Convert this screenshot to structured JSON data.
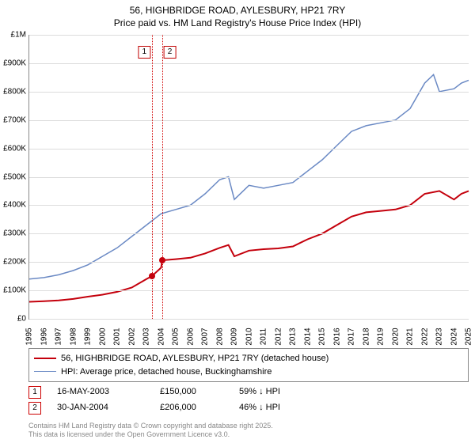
{
  "title_line1": "56, HIGHBRIDGE ROAD, AYLESBURY, HP21 7RY",
  "title_line2": "Price paid vs. HM Land Registry's House Price Index (HPI)",
  "chart": {
    "type": "line",
    "background_color": "#ffffff",
    "grid_color": "#dcdcdc",
    "axis_color": "#888888",
    "x_min": 1995,
    "x_max": 2025,
    "y_min": 0,
    "y_max": 1000000,
    "y_ticks": [
      {
        "v": 0,
        "label": "£0"
      },
      {
        "v": 100000,
        "label": "£100K"
      },
      {
        "v": 200000,
        "label": "£200K"
      },
      {
        "v": 300000,
        "label": "£300K"
      },
      {
        "v": 400000,
        "label": "£400K"
      },
      {
        "v": 500000,
        "label": "£500K"
      },
      {
        "v": 600000,
        "label": "£600K"
      },
      {
        "v": 700000,
        "label": "£700K"
      },
      {
        "v": 800000,
        "label": "£800K"
      },
      {
        "v": 900000,
        "label": "£900K"
      },
      {
        "v": 1000000,
        "label": "£1M"
      }
    ],
    "x_ticks": [
      1995,
      1996,
      1997,
      1998,
      1999,
      2000,
      2001,
      2002,
      2003,
      2004,
      2005,
      2006,
      2007,
      2008,
      2009,
      2010,
      2011,
      2012,
      2013,
      2014,
      2015,
      2016,
      2017,
      2018,
      2019,
      2020,
      2021,
      2022,
      2023,
      2024,
      2025
    ],
    "series": [
      {
        "name": "price_paid",
        "color": "#c4000c",
        "width": 2,
        "points": [
          [
            1995,
            60000
          ],
          [
            1996,
            62000
          ],
          [
            1997,
            65000
          ],
          [
            1998,
            70000
          ],
          [
            1999,
            78000
          ],
          [
            2000,
            85000
          ],
          [
            2001,
            95000
          ],
          [
            2002,
            110000
          ],
          [
            2003,
            140000
          ],
          [
            2003.37,
            150000
          ],
          [
            2004,
            180000
          ],
          [
            2004.08,
            206000
          ],
          [
            2005,
            210000
          ],
          [
            2006,
            215000
          ],
          [
            2007,
            230000
          ],
          [
            2008,
            250000
          ],
          [
            2008.6,
            260000
          ],
          [
            2009,
            220000
          ],
          [
            2010,
            240000
          ],
          [
            2011,
            245000
          ],
          [
            2012,
            248000
          ],
          [
            2013,
            255000
          ],
          [
            2014,
            280000
          ],
          [
            2015,
            300000
          ],
          [
            2016,
            330000
          ],
          [
            2017,
            360000
          ],
          [
            2018,
            375000
          ],
          [
            2019,
            380000
          ],
          [
            2020,
            385000
          ],
          [
            2021,
            400000
          ],
          [
            2022,
            440000
          ],
          [
            2023,
            450000
          ],
          [
            2024,
            420000
          ],
          [
            2024.5,
            440000
          ],
          [
            2025,
            450000
          ]
        ]
      },
      {
        "name": "hpi",
        "color": "#6a89c4",
        "width": 1.5,
        "points": [
          [
            1995,
            140000
          ],
          [
            1996,
            145000
          ],
          [
            1997,
            155000
          ],
          [
            1998,
            170000
          ],
          [
            1999,
            190000
          ],
          [
            2000,
            220000
          ],
          [
            2001,
            250000
          ],
          [
            2002,
            290000
          ],
          [
            2003,
            330000
          ],
          [
            2004,
            370000
          ],
          [
            2005,
            385000
          ],
          [
            2006,
            400000
          ],
          [
            2007,
            440000
          ],
          [
            2008,
            490000
          ],
          [
            2008.6,
            500000
          ],
          [
            2009,
            420000
          ],
          [
            2010,
            470000
          ],
          [
            2011,
            460000
          ],
          [
            2012,
            470000
          ],
          [
            2013,
            480000
          ],
          [
            2014,
            520000
          ],
          [
            2015,
            560000
          ],
          [
            2016,
            610000
          ],
          [
            2017,
            660000
          ],
          [
            2018,
            680000
          ],
          [
            2019,
            690000
          ],
          [
            2020,
            700000
          ],
          [
            2021,
            740000
          ],
          [
            2022,
            830000
          ],
          [
            2022.6,
            860000
          ],
          [
            2023,
            800000
          ],
          [
            2024,
            810000
          ],
          [
            2024.5,
            830000
          ],
          [
            2025,
            840000
          ]
        ]
      }
    ],
    "markers": [
      {
        "id": "1",
        "x": 2003.37,
        "price": 150000
      },
      {
        "id": "2",
        "x": 2004.08,
        "price": 206000
      }
    ],
    "marker_line_color": "#d00000",
    "marker_box_border": "#c00000",
    "sale_dot_color": "#c4000c"
  },
  "legend": {
    "items": [
      {
        "color": "#c4000c",
        "width": 2,
        "label": "56, HIGHBRIDGE ROAD, AYLESBURY, HP21 7RY (detached house)"
      },
      {
        "color": "#6a89c4",
        "width": 1.5,
        "label": "HPI: Average price, detached house, Buckinghamshire"
      }
    ]
  },
  "sales": [
    {
      "id": "1",
      "date": "16-MAY-2003",
      "price": "£150,000",
      "vs_hpi": "59% ↓ HPI"
    },
    {
      "id": "2",
      "date": "30-JAN-2004",
      "price": "£206,000",
      "vs_hpi": "46% ↓ HPI"
    }
  ],
  "copyright_line1": "Contains HM Land Registry data © Crown copyright and database right 2025.",
  "copyright_line2": "This data is licensed under the Open Government Licence v3.0."
}
